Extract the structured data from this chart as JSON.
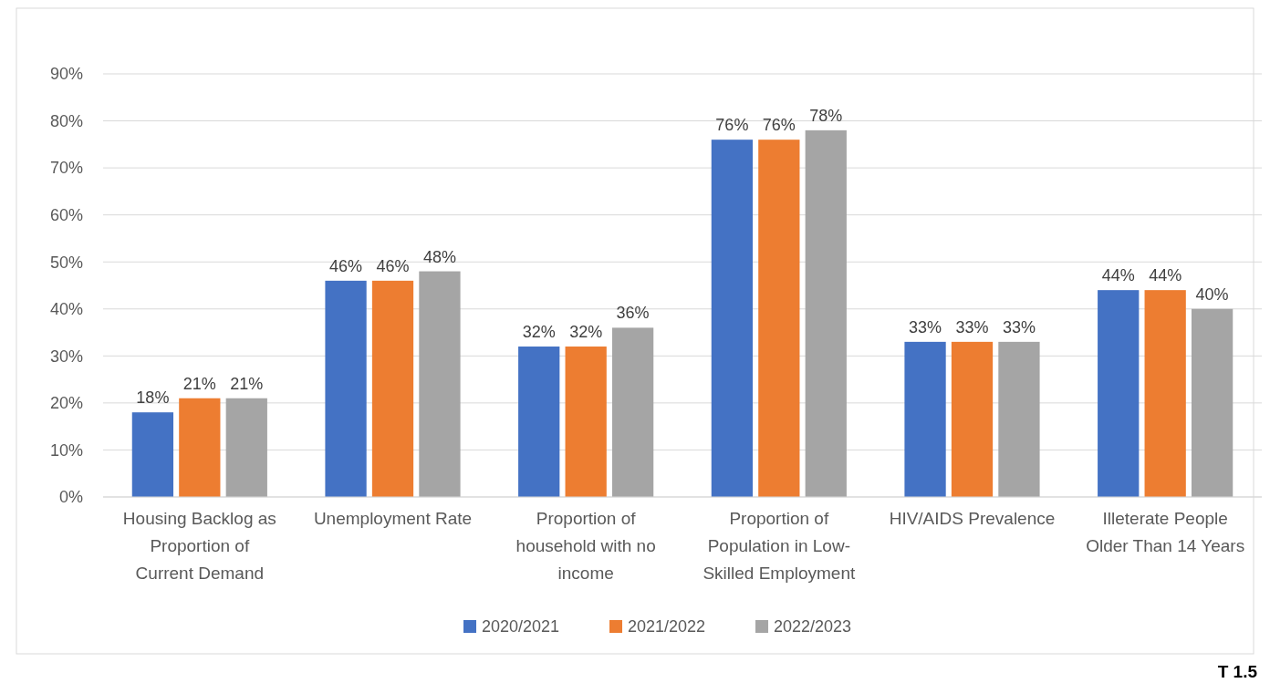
{
  "chart_data": {
    "type": "bar",
    "categories": [
      "Housing Backlog as Proportion of Current Demand",
      "Unemployment Rate",
      "Proportion of household with no income",
      "Proportion of Population in Low-Skilled Employment",
      "HIV/AIDS Prevalence",
      "Illeterate People Older Than 14 Years"
    ],
    "series": [
      {
        "name": "2020/2021",
        "color": "#4472c4",
        "values": [
          18,
          46,
          32,
          76,
          33,
          44
        ],
        "value_labels": [
          "18%",
          "46%",
          "32%",
          "76%",
          "33%",
          "44%"
        ]
      },
      {
        "name": "2021/2022",
        "color": "#ed7d31",
        "values": [
          21,
          46,
          32,
          76,
          33,
          44
        ],
        "value_labels": [
          "21%",
          "46%",
          "32%",
          "76%",
          "33%",
          "44%"
        ]
      },
      {
        "name": "2022/2023",
        "color": "#a5a5a5",
        "values": [
          21,
          48,
          36,
          78,
          33,
          40
        ],
        "value_labels": [
          "21%",
          "48%",
          "36%",
          "78%",
          "33%",
          "40%"
        ]
      }
    ],
    "ylim": [
      0,
      90
    ],
    "yticks": [
      {
        "value": 0,
        "label": "0%"
      },
      {
        "value": 10,
        "label": "10%"
      },
      {
        "value": 20,
        "label": "20%"
      },
      {
        "value": 30,
        "label": "30%"
      },
      {
        "value": 40,
        "label": "40%"
      },
      {
        "value": 50,
        "label": "50%"
      },
      {
        "value": 60,
        "label": "60%"
      },
      {
        "value": 70,
        "label": "70%"
      },
      {
        "value": 80,
        "label": "80%"
      },
      {
        "value": 90,
        "label": "90%"
      }
    ],
    "grid": "y",
    "legend": "bottom",
    "annotations": [
      "T 1.5"
    ]
  }
}
